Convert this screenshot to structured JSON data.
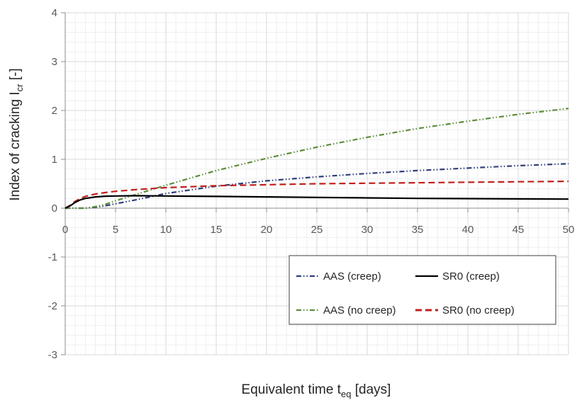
{
  "chart_data": {
    "type": "line",
    "title": "",
    "xlabel": {
      "main": "Equivalent time t",
      "sub": "eq",
      "rest": " [days]"
    },
    "ylabel": {
      "main": "Index of cracking I",
      "sub": "cr",
      "rest": " [-]"
    },
    "xlim": [
      0,
      50
    ],
    "ylim": [
      -3,
      4
    ],
    "x_ticks": [
      "0",
      "5",
      "10",
      "15",
      "20",
      "25",
      "30",
      "35",
      "40",
      "45",
      "50"
    ],
    "y_ticks": [
      "-3",
      "-2",
      "-1",
      "0",
      "1",
      "2",
      "3",
      "4"
    ],
    "grid": true,
    "legend_position": "lower-right",
    "series": [
      {
        "name": "AAS (creep)",
        "color": "#2f3e7a",
        "dash": "dash-dot-dot",
        "x": [
          0,
          1,
          2,
          3,
          4,
          5,
          7,
          10,
          15,
          20,
          25,
          30,
          35,
          40,
          45,
          50
        ],
        "y": [
          0,
          0,
          0,
          0.02,
          0.05,
          0.09,
          0.17,
          0.3,
          0.45,
          0.56,
          0.64,
          0.71,
          0.77,
          0.82,
          0.87,
          0.91
        ]
      },
      {
        "name": "SR0 (creep)",
        "color": "#000000",
        "dash": "solid",
        "x": [
          0,
          0.5,
          1,
          1.5,
          2,
          3,
          4,
          5,
          7,
          10,
          15,
          20,
          25,
          30,
          35,
          40,
          45,
          50
        ],
        "y": [
          0,
          0.05,
          0.12,
          0.17,
          0.2,
          0.23,
          0.245,
          0.25,
          0.255,
          0.25,
          0.24,
          0.23,
          0.22,
          0.21,
          0.2,
          0.195,
          0.19,
          0.185
        ]
      },
      {
        "name": "AAS (no creep)",
        "color": "#5e8c3a",
        "dash": "dash-dot-dot",
        "x": [
          0,
          1,
          2,
          3,
          4,
          5,
          7,
          10,
          15,
          20,
          25,
          30,
          35,
          40,
          45,
          50
        ],
        "y": [
          0,
          0,
          0,
          0.03,
          0.08,
          0.15,
          0.28,
          0.47,
          0.77,
          1.02,
          1.25,
          1.45,
          1.63,
          1.78,
          1.92,
          2.04
        ]
      },
      {
        "name": "SR0 (no creep)",
        "color": "#c0201c",
        "dash": "dashed",
        "x": [
          0,
          0.5,
          1,
          1.5,
          2,
          3,
          4,
          5,
          7,
          10,
          15,
          20,
          25,
          30,
          35,
          40,
          45,
          50
        ],
        "y": [
          0,
          0.06,
          0.14,
          0.2,
          0.24,
          0.29,
          0.32,
          0.345,
          0.38,
          0.42,
          0.46,
          0.48,
          0.5,
          0.51,
          0.52,
          0.53,
          0.54,
          0.55
        ]
      }
    ]
  }
}
